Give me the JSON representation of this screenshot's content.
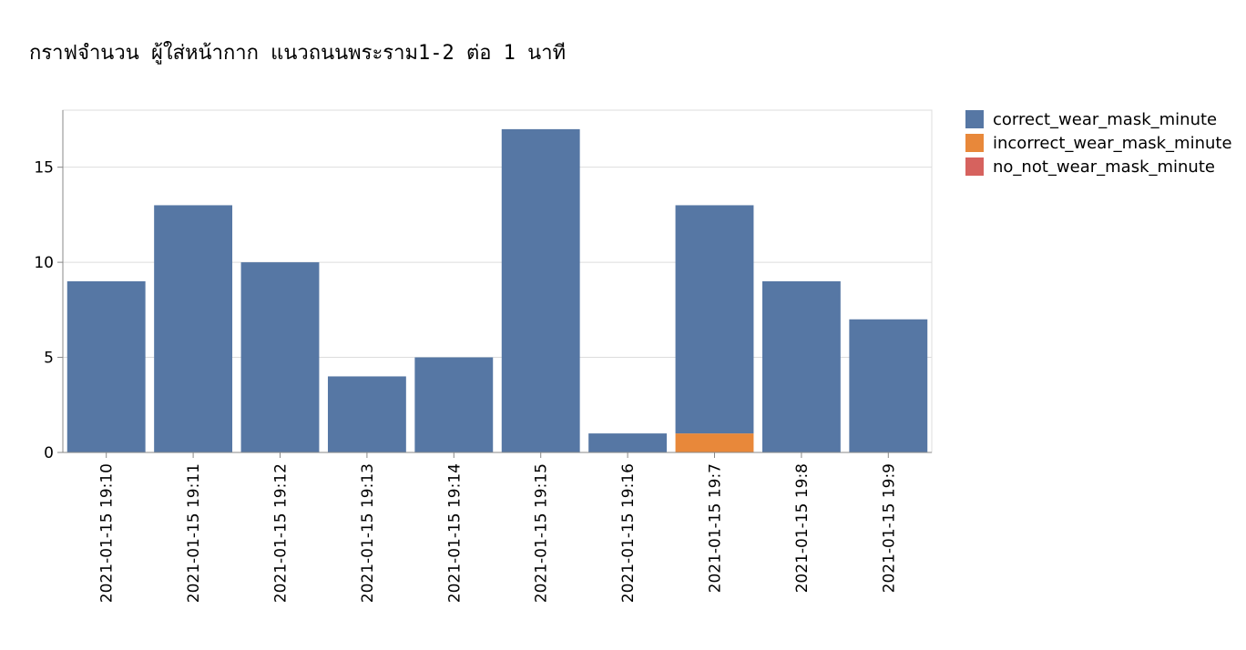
{
  "chart_data": {
    "type": "bar",
    "stacked": true,
    "title": "กราฟจำนวน ผู้ใส่หน้ากาก แนวถนนพระราม1-2 ต่อ 1 นาที",
    "xlabel": "",
    "ylabel": "",
    "ylim": [
      0,
      18
    ],
    "yticks": [
      0,
      5,
      10,
      15
    ],
    "grid": true,
    "legend_position": "top-right",
    "categories": [
      "2021-01-15 19:10",
      "2021-01-15 19:11",
      "2021-01-15 19:12",
      "2021-01-15 19:13",
      "2021-01-15 19:14",
      "2021-01-15 19:15",
      "2021-01-15 19:16",
      "2021-01-15 19:7",
      "2021-01-15 19:8",
      "2021-01-15 19:9"
    ],
    "series": [
      {
        "name": "correct_wear_mask_minute",
        "color": "#5677a4",
        "values": [
          9,
          13,
          10,
          4,
          5,
          17,
          1,
          12,
          9,
          7
        ]
      },
      {
        "name": "incorrect_wear_mask_minute",
        "color": "#e8883a",
        "values": [
          0,
          0,
          0,
          0,
          0,
          0,
          0,
          1,
          0,
          0
        ]
      },
      {
        "name": "no_not_wear_mask_minute",
        "color": "#d6625e",
        "values": [
          0,
          0,
          0,
          0,
          0,
          0,
          0,
          0,
          0,
          0
        ]
      }
    ]
  }
}
